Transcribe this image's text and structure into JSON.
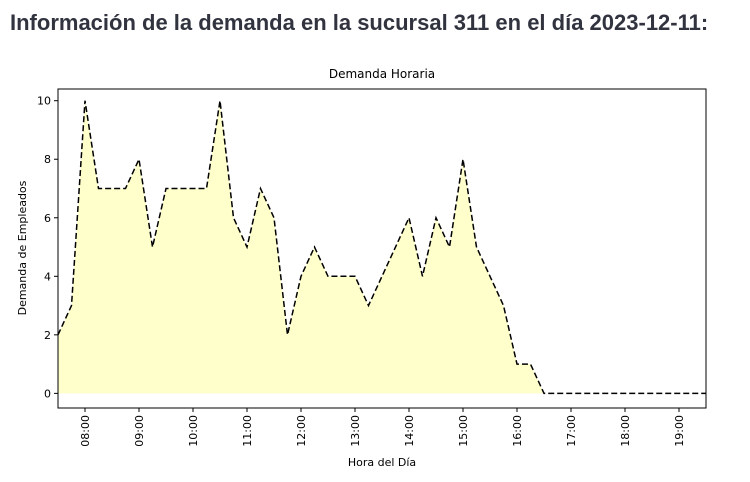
{
  "header": {
    "title": "Información de la demanda en la sucursal 311 en el día 2023-12-11:"
  },
  "chart_data": {
    "type": "area",
    "title": "Demanda Horaria",
    "x_label": "Hora del Día",
    "y_label": "Demanda de Empleados",
    "x": [
      "07:30",
      "07:45",
      "08:00",
      "08:15",
      "08:30",
      "08:45",
      "09:00",
      "09:15",
      "09:30",
      "09:45",
      "10:00",
      "10:15",
      "10:30",
      "10:45",
      "11:00",
      "11:15",
      "11:30",
      "11:45",
      "12:00",
      "12:15",
      "12:30",
      "12:45",
      "13:00",
      "13:15",
      "13:30",
      "13:45",
      "14:00",
      "14:15",
      "14:30",
      "14:45",
      "15:00",
      "15:15",
      "15:30",
      "15:45",
      "16:00",
      "16:15",
      "16:30",
      "16:45",
      "17:00",
      "17:15",
      "17:30",
      "17:45",
      "18:00",
      "18:15",
      "18:30",
      "18:45",
      "19:00",
      "19:15",
      "19:30"
    ],
    "series": [
      {
        "values": [
          2,
          3,
          10,
          7,
          7,
          7,
          8,
          5,
          7,
          7,
          7,
          7,
          10,
          6,
          5,
          7,
          6,
          2,
          4,
          5,
          4,
          4,
          4,
          3,
          4,
          5,
          6,
          4,
          6,
          5,
          8,
          5,
          4,
          3,
          1,
          1,
          0,
          0,
          0,
          0,
          0,
          0,
          0,
          0,
          0,
          0,
          0,
          0,
          0
        ],
        "color": "#000000",
        "fill": "#ffffcc",
        "dash": true
      }
    ],
    "xlim": [
      "07:30",
      "19:30"
    ],
    "xticks": [
      "08:00",
      "09:00",
      "10:00",
      "11:00",
      "12:00",
      "13:00",
      "14:00",
      "15:00",
      "16:00",
      "17:00",
      "18:00",
      "19:00"
    ],
    "ylim": [
      -0.5,
      10.4
    ],
    "yticks": [
      0,
      2,
      4,
      6,
      8,
      10
    ]
  }
}
